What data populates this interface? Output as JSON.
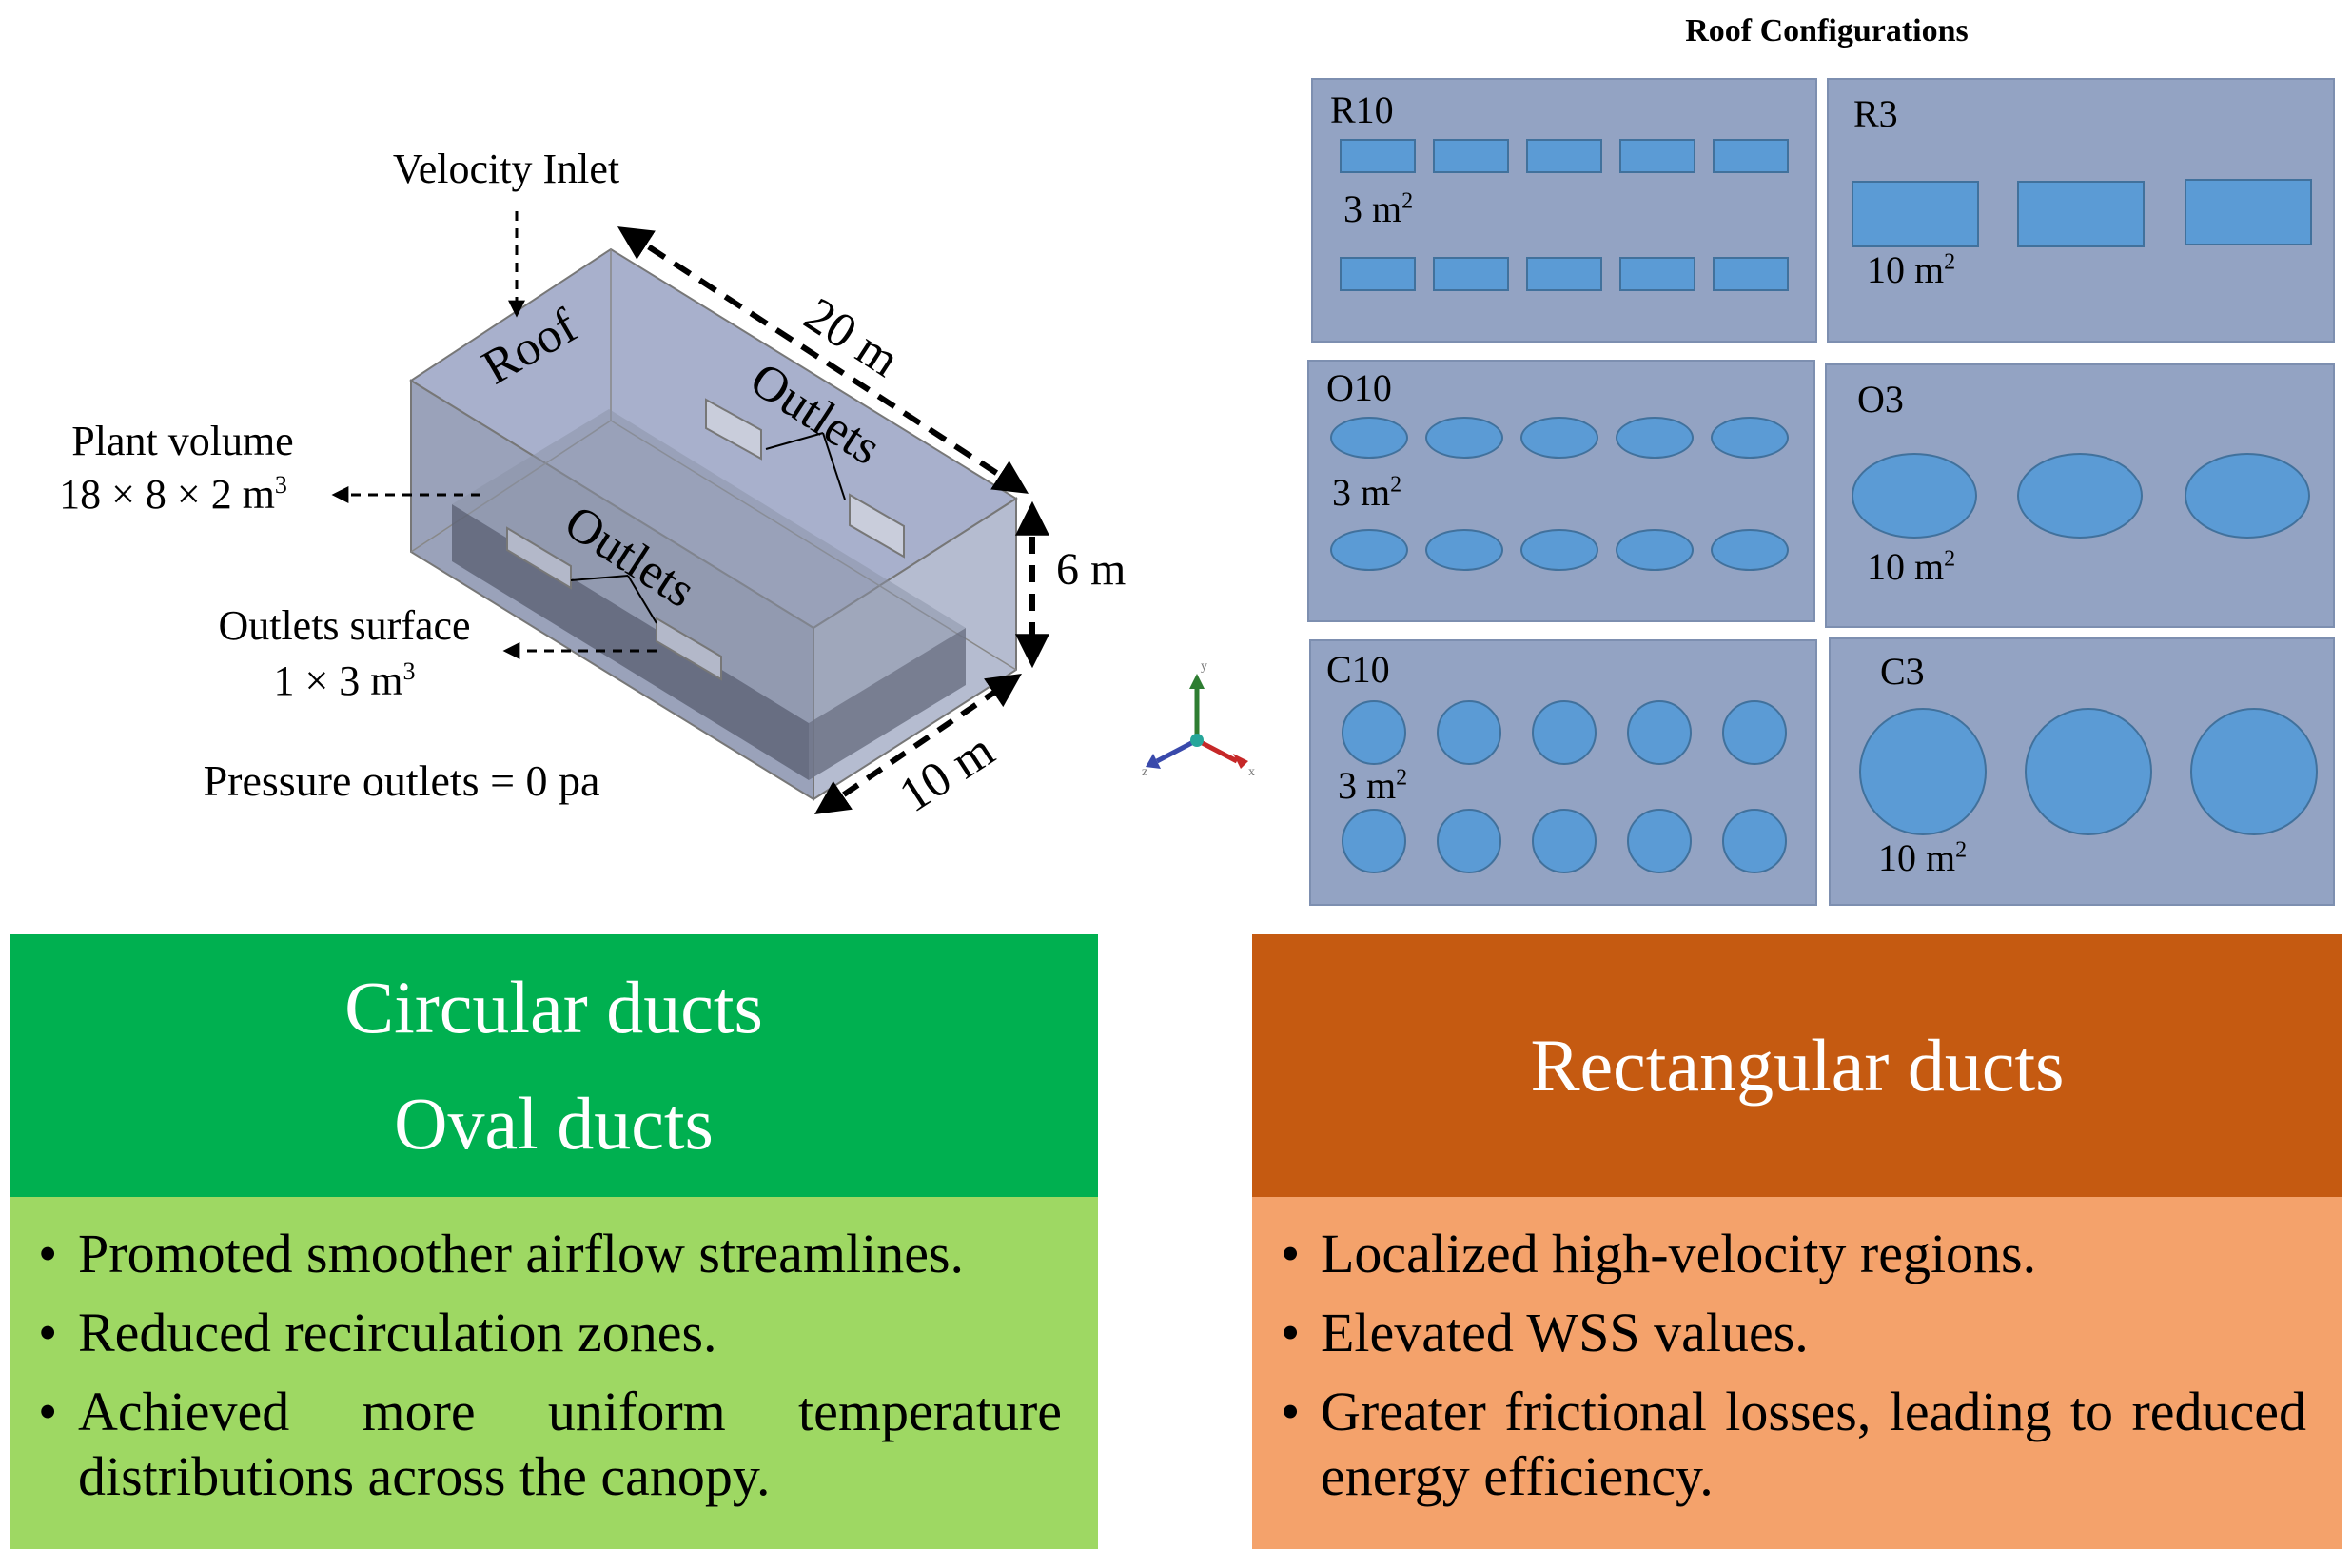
{
  "figure": {
    "inlet_label": "Velocity Inlet",
    "roof_label": "Roof",
    "length_label": "20 m",
    "height_label": "6 m",
    "width_label": "10 m",
    "outlets_label_top": "Outlets",
    "outlets_label_bottom": "Outlets",
    "plant_volume_title": "Plant volume",
    "plant_volume_dims": "18 × 8 × 2 m",
    "plant_volume_exp": "3",
    "outlets_surface_title": "Outlets surface",
    "outlets_surface_dims": "1 × 3 m",
    "outlets_surface_exp": "3",
    "pressure_label": "Pressure outlets = 0 pa",
    "axis_y": "y",
    "axis_z": "z",
    "axis_x": "x"
  },
  "roof": {
    "title": "Roof Configurations",
    "panels": [
      {
        "label": "R10",
        "area": "3 m",
        "exp": "2"
      },
      {
        "label": "R3",
        "area": "10 m",
        "exp": "2"
      },
      {
        "label": "O10",
        "area": "3 m",
        "exp": "2"
      },
      {
        "label": "O3",
        "area": "10 m",
        "exp": "2"
      },
      {
        "label": "C10",
        "area": "3 m",
        "exp": "2"
      },
      {
        "label": "C3",
        "area": "10 m",
        "exp": "2"
      }
    ]
  },
  "left_box": {
    "header_lines": [
      "Circular ducts",
      "Oval ducts"
    ],
    "bullet_char": "•",
    "bullets": [
      "Promoted smoother airflow streamlines.",
      "Reduced recirculation zones.",
      "Achieved more uniform temperature distributions across the canopy."
    ],
    "header_color": "#00B050",
    "body_color": "#9ED863"
  },
  "right_box": {
    "header_lines": [
      "Rectangular ducts"
    ],
    "bullet_char": "•",
    "bullets": [
      "Localized high-velocity regions.",
      "Elevated WSS values.",
      "Greater frictional losses, leading to reduced energy efficiency."
    ],
    "header_color": "#C55A11",
    "body_color": "#F4A26B"
  }
}
